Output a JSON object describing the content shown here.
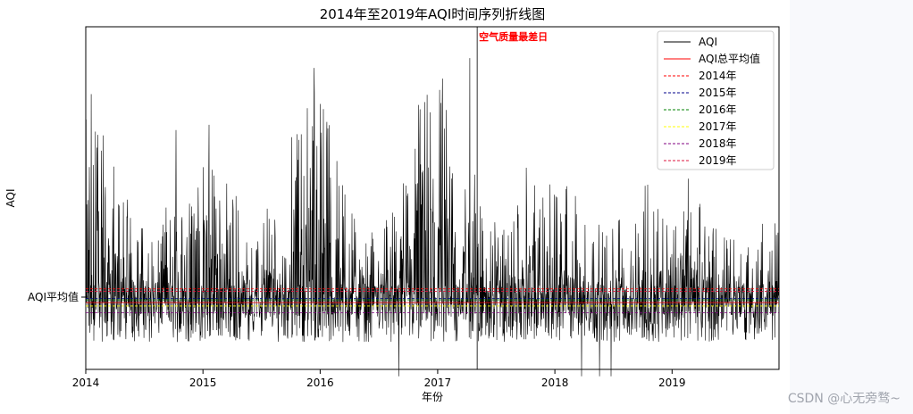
{
  "chart_data": {
    "type": "line",
    "title": "2014年至2019年AQI时间序列折线图",
    "xlabel": "年份",
    "ylabel": "AQI",
    "x_ticks": [
      "2014",
      "2015",
      "2016",
      "2017",
      "2018",
      "2019"
    ],
    "y_tick_label": "AQI平均值",
    "xlim": [
      "2014-01-01",
      "2019-11-30"
    ],
    "legend_position": "upper-right",
    "grid": false,
    "annotation": {
      "text": "空气质量最差日",
      "color": "#ff0000",
      "date": "2017-05-04"
    },
    "series": [
      {
        "name": "AQI",
        "color": "#000000",
        "x": [
          "2014-01",
          "2014-02",
          "2014-03",
          "2014-04",
          "2014-05",
          "2014-06",
          "2014-07",
          "2014-08",
          "2014-09",
          "2014-10",
          "2014-11",
          "2014-12",
          "2015-01",
          "2015-02",
          "2015-03",
          "2015-04",
          "2015-05",
          "2015-06",
          "2015-07",
          "2015-08",
          "2015-09",
          "2015-10",
          "2015-11",
          "2015-12",
          "2016-01",
          "2016-02",
          "2016-03",
          "2016-04",
          "2016-05",
          "2016-06",
          "2016-07",
          "2016-08",
          "2016-09",
          "2016-10",
          "2016-11",
          "2016-12",
          "2017-01",
          "2017-02",
          "2017-03",
          "2017-04",
          "2017-05",
          "2017-06",
          "2017-07",
          "2017-08",
          "2017-09",
          "2017-10",
          "2017-11",
          "2017-12",
          "2018-01",
          "2018-02",
          "2018-03",
          "2018-04",
          "2018-05",
          "2018-06",
          "2018-07",
          "2018-08",
          "2018-09",
          "2018-10",
          "2018-11",
          "2018-12",
          "2019-01",
          "2019-02",
          "2019-03",
          "2019-04",
          "2019-05",
          "2019-06",
          "2019-07",
          "2019-08",
          "2019-09",
          "2019-10",
          "2019-11"
        ],
        "monthly_peak": [
          0.9,
          0.84,
          0.6,
          0.55,
          0.5,
          0.42,
          0.48,
          0.43,
          0.5,
          0.77,
          0.68,
          0.7,
          0.74,
          0.62,
          0.56,
          0.52,
          0.45,
          0.38,
          0.5,
          0.46,
          0.52,
          0.7,
          0.78,
          0.96,
          0.8,
          0.65,
          0.55,
          0.5,
          0.48,
          0.42,
          0.5,
          0.46,
          0.55,
          0.68,
          0.82,
          0.95,
          0.88,
          0.75,
          0.62,
          1.0,
          0.5,
          0.45,
          0.52,
          0.48,
          0.5,
          0.6,
          0.52,
          0.57,
          0.56,
          0.58,
          0.52,
          0.48,
          0.44,
          0.42,
          0.46,
          0.4,
          0.44,
          0.54,
          0.52,
          0.56,
          0.54,
          0.56,
          0.5,
          0.48,
          0.42,
          0.4,
          0.44,
          0.42,
          0.4,
          0.45,
          0.44
        ],
        "peak_unit": "fraction of plot height (no AQI values are printed on the y axis)",
        "baseline": 0.08,
        "extreme_low_dates": [
          "2016-09-02",
          "2018-03-25",
          "2018-05-20",
          "2018-06-25"
        ]
      },
      {
        "name": "AQI总平均值",
        "color": "#ff0000",
        "style": "solid",
        "level": 0.195
      },
      {
        "name": "2014年",
        "color": "#ff0000",
        "style": "dashed",
        "level": 0.235
      },
      {
        "name": "2015年",
        "color": "#00008b",
        "style": "dashed",
        "level": 0.207
      },
      {
        "name": "2016年",
        "color": "#008000",
        "style": "dashed",
        "level": 0.203
      },
      {
        "name": "2017年",
        "color": "#ffff00",
        "style": "dashed",
        "level": 0.185
      },
      {
        "name": "2018年",
        "color": "#800080",
        "style": "dashed",
        "level": 0.165
      },
      {
        "name": "2019年",
        "color": "#dc143c",
        "style": "dashed",
        "level": 0.228
      }
    ]
  },
  "watermark": "CSDN @心无旁骛~"
}
